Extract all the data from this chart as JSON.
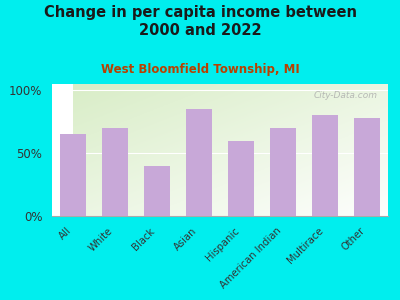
{
  "title": "Change in per capita income between\n2000 and 2022",
  "subtitle": "West Bloomfield Township, MI",
  "watermark": "City-Data.com",
  "categories": [
    "All",
    "White",
    "Black",
    "Asian",
    "Hispanic",
    "American Indian",
    "Multirace",
    "Other"
  ],
  "values": [
    65,
    70,
    40,
    85,
    60,
    70,
    80,
    78
  ],
  "bar_color": "#c8a8d8",
  "background_outer": "#00EEEE",
  "title_color": "#1a1a1a",
  "subtitle_color": "#b84000",
  "ylabel_ticks": [
    "0%",
    "50%",
    "100%"
  ],
  "ytick_vals": [
    0,
    50,
    100
  ],
  "ylim": [
    0,
    105
  ],
  "title_fontsize": 10.5,
  "subtitle_fontsize": 8.5
}
